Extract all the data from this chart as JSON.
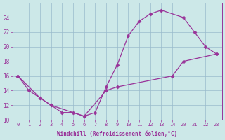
{
  "line1_x": [
    0,
    1,
    2,
    3,
    4,
    5,
    6,
    7,
    8,
    9,
    10,
    11,
    12,
    13,
    20,
    21,
    22,
    23
  ],
  "line1_y": [
    16,
    14,
    13,
    12,
    11,
    11,
    10.5,
    11,
    14.5,
    17.5,
    21.5,
    23.5,
    24.5,
    25,
    24,
    22,
    20,
    19
  ],
  "line2_x": [
    0,
    2,
    3,
    6,
    8,
    9,
    14,
    20,
    23
  ],
  "line2_y": [
    16,
    13,
    12,
    10.5,
    14,
    14.5,
    16,
    18,
    19
  ],
  "line_color": "#993399",
  "bg_color": "#cce8e8",
  "xlabel": "Windchill (Refroidissement éolien,°C)",
  "xtick_labels": [
    "0",
    "1",
    "2",
    "3",
    "4",
    "5",
    "6",
    "7",
    "8",
    "9",
    "10",
    "11",
    "12",
    "13",
    "14",
    "20",
    "21",
    "22",
    "23"
  ],
  "xtick_vals": [
    0,
    1,
    2,
    3,
    4,
    5,
    6,
    7,
    8,
    9,
    10,
    11,
    12,
    13,
    14,
    20,
    21,
    22,
    23
  ],
  "ylim": [
    10,
    26
  ],
  "yticks": [
    10,
    12,
    14,
    16,
    18,
    20,
    22,
    24
  ],
  "grid_color": "#99bbcc",
  "marker": "D",
  "markersize": 2.5,
  "linewidth": 0.9
}
